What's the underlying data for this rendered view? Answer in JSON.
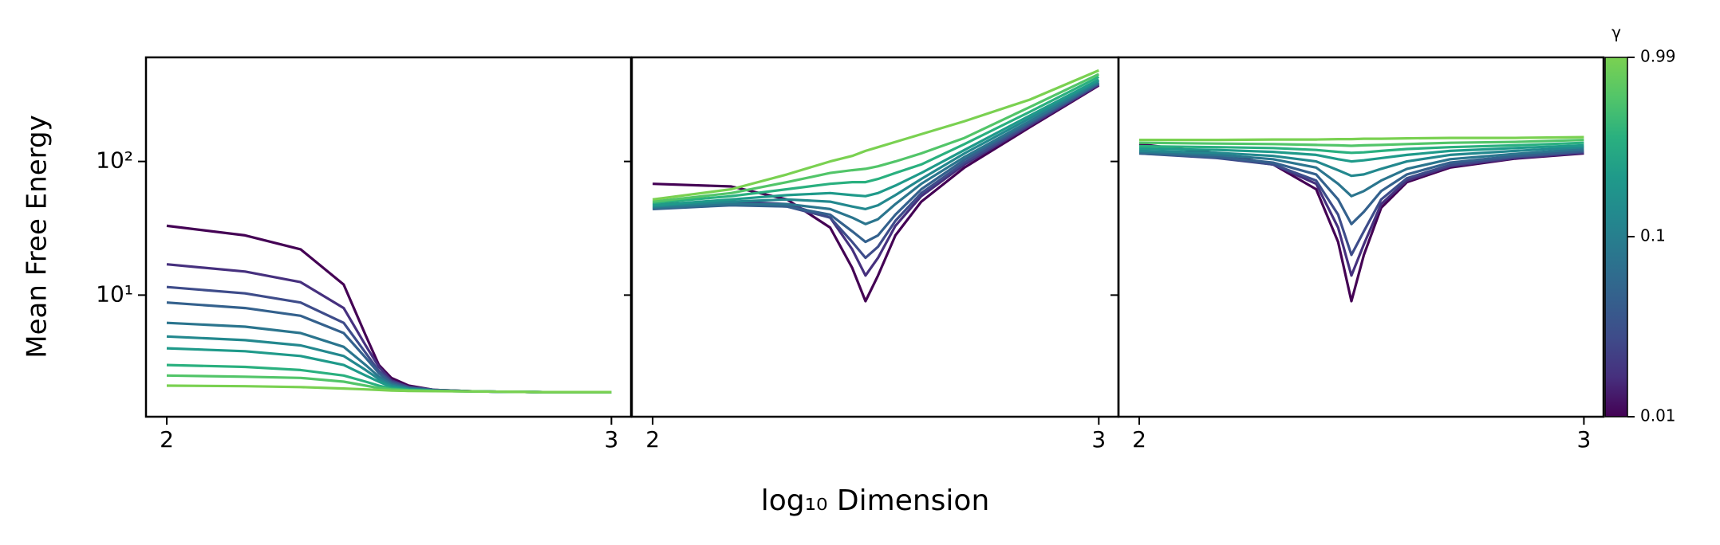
{
  "chart_data": [
    {
      "type": "line",
      "xscale": "log",
      "yscale": "log",
      "x": [
        100,
        150,
        200,
        250,
        280,
        300,
        320,
        350,
        400,
        500,
        700,
        1000
      ],
      "xlim": [
        89.8,
        1107
      ],
      "xticks": [
        {
          "value": 100,
          "label": "2"
        },
        {
          "value": 1000,
          "label": "3"
        }
      ],
      "ylim": [
        1.23,
        601
      ],
      "yticks": [
        {
          "value": 10,
          "label": "10¹"
        },
        {
          "value": 100,
          "label": "10²"
        }
      ],
      "series": [
        {
          "color": "#440154",
          "values": [
            33,
            28,
            22,
            12,
            5,
            3,
            2.4,
            2.1,
            1.95,
            1.9,
            1.88,
            1.88
          ]
        },
        {
          "color": "#46307e",
          "values": [
            17,
            15,
            12.5,
            8,
            4.2,
            2.9,
            2.3,
            2.05,
            1.95,
            1.9,
            1.88,
            1.88
          ]
        },
        {
          "color": "#3e4c8a",
          "values": [
            11.5,
            10.3,
            8.8,
            6.2,
            3.7,
            2.7,
            2.25,
            2.05,
            1.95,
            1.9,
            1.88,
            1.88
          ]
        },
        {
          "color": "#34618d",
          "values": [
            8.8,
            8,
            7,
            5.2,
            3.4,
            2.6,
            2.2,
            2.02,
            1.94,
            1.9,
            1.88,
            1.88
          ]
        },
        {
          "color": "#2b758e",
          "values": [
            6.2,
            5.8,
            5.2,
            4.1,
            3.0,
            2.45,
            2.15,
            2.0,
            1.93,
            1.9,
            1.88,
            1.88
          ]
        },
        {
          "color": "#23888e",
          "values": [
            4.9,
            4.6,
            4.2,
            3.5,
            2.75,
            2.35,
            2.1,
            1.98,
            1.93,
            1.9,
            1.88,
            1.88
          ]
        },
        {
          "color": "#1f9a8a",
          "values": [
            4.0,
            3.8,
            3.5,
            3.0,
            2.5,
            2.25,
            2.05,
            1.97,
            1.92,
            1.9,
            1.88,
            1.88
          ]
        },
        {
          "color": "#2ab07f",
          "values": [
            3.0,
            2.9,
            2.75,
            2.5,
            2.25,
            2.1,
            2.0,
            1.95,
            1.92,
            1.9,
            1.88,
            1.88
          ]
        },
        {
          "color": "#52c569",
          "values": [
            2.5,
            2.45,
            2.4,
            2.25,
            2.1,
            2.02,
            1.97,
            1.94,
            1.92,
            1.9,
            1.88,
            1.88
          ]
        },
        {
          "color": "#7ad151",
          "values": [
            2.1,
            2.08,
            2.05,
            2.0,
            1.97,
            1.95,
            1.93,
            1.92,
            1.91,
            1.9,
            1.88,
            1.88
          ]
        }
      ]
    },
    {
      "type": "line",
      "xscale": "log",
      "yscale": "log",
      "x": [
        100,
        150,
        200,
        250,
        280,
        300,
        320,
        350,
        400,
        500,
        700,
        1000
      ],
      "xlim": [
        89.8,
        1107
      ],
      "xticks": [
        {
          "value": 100,
          "label": "2"
        },
        {
          "value": 1000,
          "label": "3"
        }
      ],
      "ylim": [
        1.23,
        601
      ],
      "yticks": [
        10,
        100
      ],
      "series": [
        {
          "color": "#440154",
          "values": [
            68,
            65,
            52,
            32,
            16,
            9,
            14,
            28,
            50,
            90,
            180,
            370
          ]
        },
        {
          "color": "#46307e",
          "values": [
            48,
            50,
            48,
            38,
            22,
            14,
            19,
            33,
            55,
            95,
            185,
            375
          ]
        },
        {
          "color": "#3e4c8a",
          "values": [
            45,
            48,
            46,
            38,
            25,
            19,
            23,
            36,
            58,
            98,
            190,
            380
          ]
        },
        {
          "color": "#34618d",
          "values": [
            44,
            47,
            46,
            40,
            30,
            25,
            28,
            40,
            62,
            103,
            195,
            385
          ]
        },
        {
          "color": "#2b758e",
          "values": [
            45,
            48,
            48,
            44,
            38,
            34,
            37,
            48,
            68,
            108,
            200,
            390
          ]
        },
        {
          "color": "#23888e",
          "values": [
            46,
            50,
            52,
            50,
            46,
            44,
            47,
            56,
            74,
            115,
            210,
            400
          ]
        },
        {
          "color": "#1f9a8a",
          "values": [
            47,
            52,
            56,
            58,
            56,
            55,
            58,
            66,
            82,
            122,
            220,
            410
          ]
        },
        {
          "color": "#2ab07f",
          "values": [
            49,
            55,
            62,
            68,
            70,
            70,
            74,
            82,
            95,
            135,
            235,
            430
          ]
        },
        {
          "color": "#52c569",
          "values": [
            50,
            58,
            70,
            82,
            86,
            88,
            92,
            100,
            115,
            150,
            255,
            450
          ]
        },
        {
          "color": "#7ad151",
          "values": [
            52,
            62,
            80,
            100,
            110,
            120,
            128,
            140,
            160,
            200,
            290,
            480
          ]
        }
      ]
    },
    {
      "type": "line",
      "xscale": "log",
      "yscale": "log",
      "x": [
        100,
        150,
        200,
        250,
        280,
        300,
        320,
        350,
        400,
        500,
        700,
        1000
      ],
      "xlim": [
        89.8,
        1107
      ],
      "xticks": [
        {
          "value": 100,
          "label": "2"
        },
        {
          "value": 1000,
          "label": "3"
        }
      ],
      "ylim": [
        1.23,
        601
      ],
      "yticks": [
        10,
        100
      ],
      "series": [
        {
          "color": "#440154",
          "values": [
            135,
            115,
            95,
            62,
            25,
            9,
            20,
            45,
            70,
            90,
            105,
            115
          ]
        },
        {
          "color": "#46307e",
          "values": [
            118,
            108,
            95,
            68,
            32,
            14,
            24,
            48,
            72,
            92,
            106,
            116
          ]
        },
        {
          "color": "#3e4c8a",
          "values": [
            115,
            106,
            95,
            72,
            40,
            20,
            30,
            52,
            75,
            94,
            108,
            118
          ]
        },
        {
          "color": "#34618d",
          "values": [
            115,
            108,
            98,
            80,
            52,
            34,
            42,
            60,
            80,
            98,
            110,
            120
          ]
        },
        {
          "color": "#2b758e",
          "values": [
            117,
            112,
            104,
            90,
            68,
            55,
            60,
            72,
            88,
            104,
            114,
            124
          ]
        },
        {
          "color": "#23888e",
          "values": [
            120,
            116,
            110,
            100,
            86,
            78,
            80,
            88,
            100,
            112,
            120,
            128
          ]
        },
        {
          "color": "#1f9a8a",
          "values": [
            125,
            122,
            118,
            112,
            104,
            100,
            102,
            106,
            112,
            120,
            126,
            132
          ]
        },
        {
          "color": "#2ab07f",
          "values": [
            130,
            128,
            126,
            122,
            118,
            116,
            117,
            120,
            124,
            128,
            132,
            138
          ]
        },
        {
          "color": "#52c569",
          "values": [
            138,
            136,
            135,
            133,
            132,
            131,
            132,
            133,
            135,
            138,
            140,
            145
          ]
        },
        {
          "color": "#7ad151",
          "values": [
            145,
            145,
            146,
            146,
            147,
            147,
            148,
            148,
            149,
            150,
            150,
            152
          ]
        }
      ]
    }
  ],
  "figure": {
    "xlabel": "log₁₀ Dimension",
    "ylabel": "Mean Free Energy",
    "colorbar": {
      "label": "γ",
      "scale": "log",
      "lim": [
        0.01,
        0.99
      ],
      "ticks": [
        0.01,
        0.1,
        0.99
      ],
      "colors": [
        "#440154",
        "#46307e",
        "#3e4c8a",
        "#34618d",
        "#2b758e",
        "#23888e",
        "#1f9a8a",
        "#2ab07f",
        "#52c569",
        "#7ad151"
      ]
    }
  }
}
